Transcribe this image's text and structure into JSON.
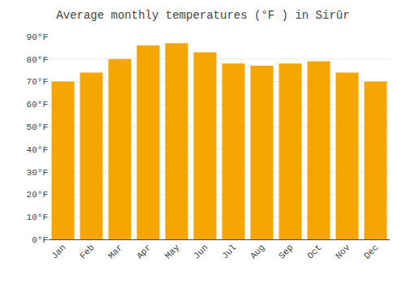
{
  "chart_data": {
    "type": "bar",
    "title": "Average monthly temperatures (°F ) in Sirūr",
    "categories": [
      "Jan",
      "Feb",
      "Mar",
      "Apr",
      "May",
      "Jun",
      "Jul",
      "Aug",
      "Sep",
      "Oct",
      "Nov",
      "Dec"
    ],
    "values": [
      70,
      74,
      80,
      86,
      87,
      83,
      78,
      77,
      78,
      79,
      74,
      70
    ],
    "color": "#F5A600",
    "ylim": [
      0,
      90
    ],
    "yticks": [
      {
        "value": 0,
        "label": "0°F"
      },
      {
        "value": 10,
        "label": "10°F"
      },
      {
        "value": 20,
        "label": "20°F"
      },
      {
        "value": 30,
        "label": "30°F"
      },
      {
        "value": 40,
        "label": "40°F"
      },
      {
        "value": 50,
        "label": "50°F"
      },
      {
        "value": 60,
        "label": "60°F"
      },
      {
        "value": 70,
        "label": "70°F"
      },
      {
        "value": 80,
        "label": "80°F"
      },
      {
        "value": 90,
        "label": "90°F"
      }
    ],
    "grid": true
  }
}
